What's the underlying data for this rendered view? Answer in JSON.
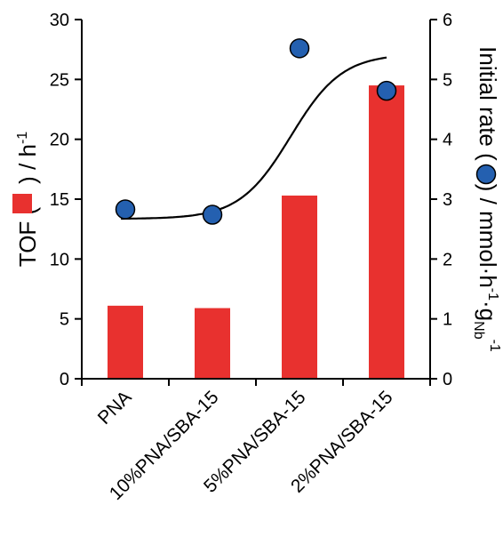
{
  "chart_data": {
    "type": "bar",
    "categories": [
      "PNA",
      "10%PNA/SBA-15",
      "5%PNA/SBA-15",
      "2%PNA/SBA-15"
    ],
    "series": [
      {
        "values": [
          6.1,
          5.9,
          15.3,
          24.5
        ],
        "axis": "left",
        "kind": "bar",
        "color": "#e8312f"
      },
      {
        "values": [
          2.83,
          2.74,
          5.52,
          4.81
        ],
        "axis": "right",
        "kind": "scatter",
        "color": "#2460b0"
      }
    ],
    "y_left": {
      "label_main": "TOF (",
      "label_tail": ") / h",
      "label_sup": "-1",
      "lim": [
        0,
        30
      ],
      "ticks": [
        0,
        5,
        10,
        15,
        20,
        25,
        30
      ]
    },
    "y_right": {
      "label_main": "Initial rate (",
      "label_mid": ") / mmol·h",
      "label_sup1": "-1",
      "label_mid2": "·g",
      "label_sub": "Nb",
      "label_sup2": "-1",
      "lim": [
        0,
        6
      ],
      "ticks": [
        0,
        1,
        2,
        3,
        4,
        5,
        6
      ]
    },
    "trend_curve": "sigmoid fit through initial rate points",
    "grid": false,
    "legend": "none"
  }
}
